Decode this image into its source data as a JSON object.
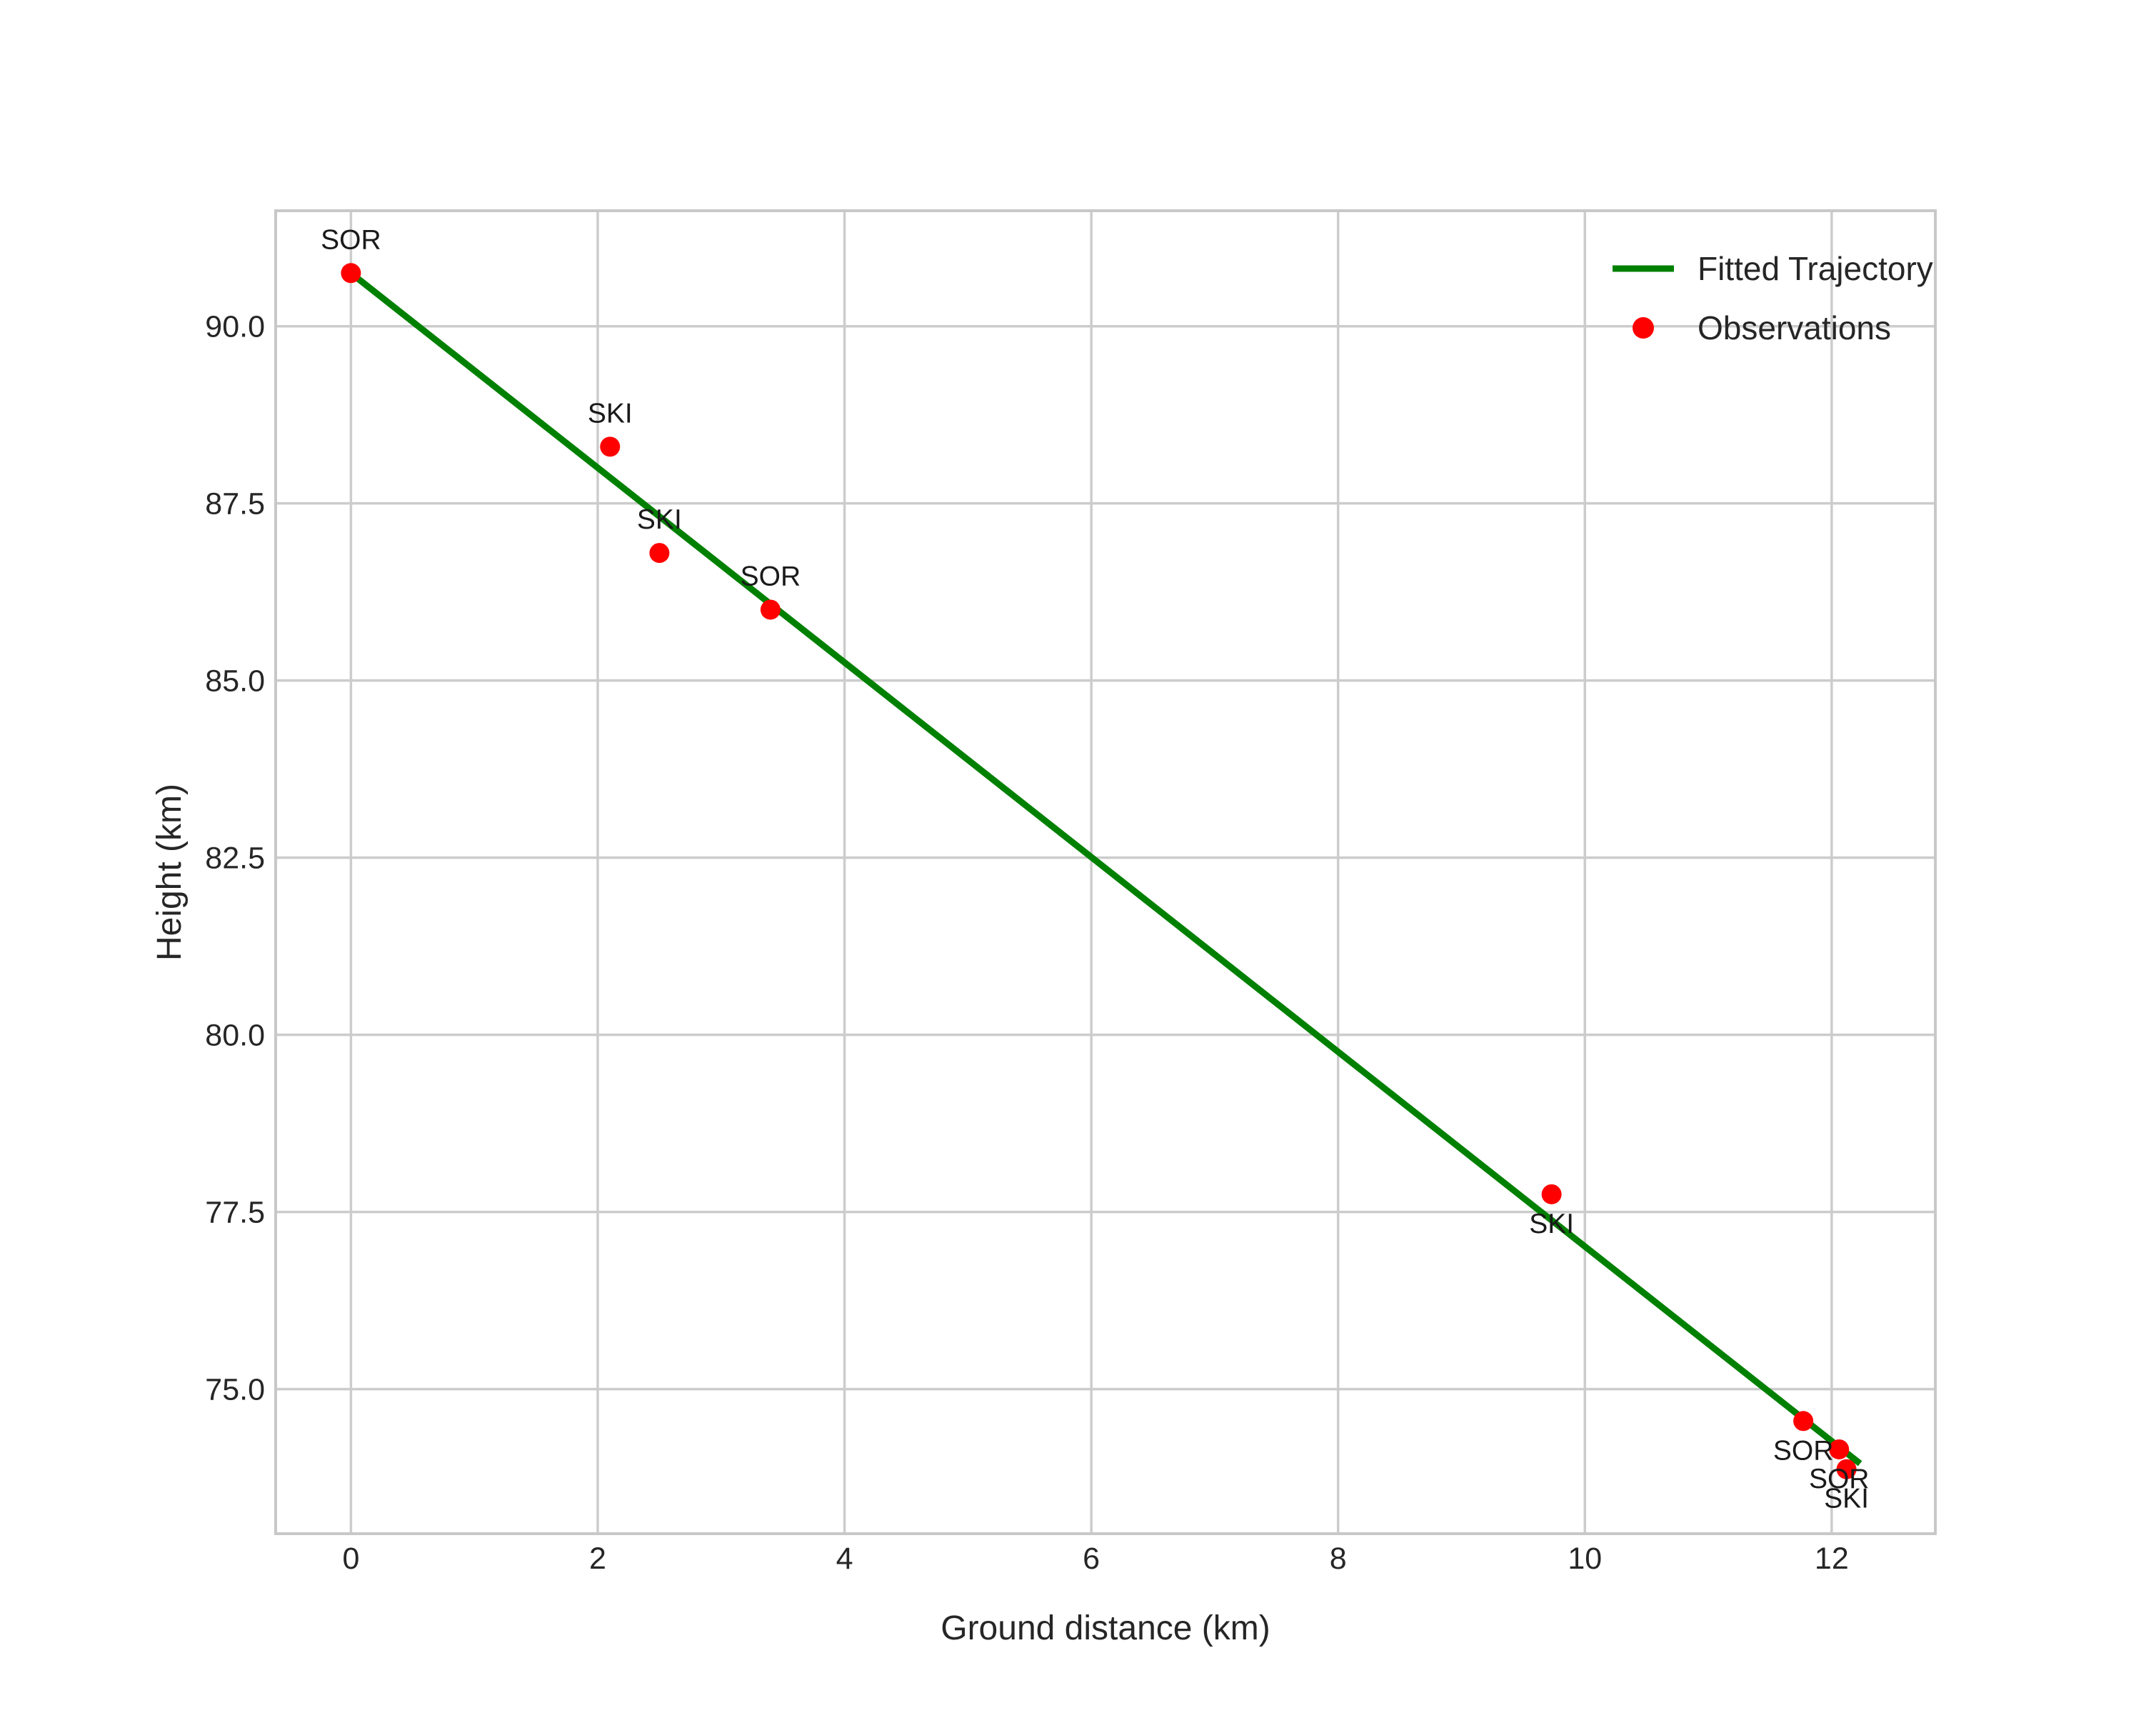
{
  "chart_data": {
    "type": "scatter",
    "title": "",
    "xlabel": "Ground distance (km)",
    "ylabel": "Height (km)",
    "xlim": [
      -0.61,
      12.84
    ],
    "ylim": [
      72.96,
      91.63
    ],
    "grid": true,
    "x_ticks": [
      0,
      2,
      4,
      6,
      8,
      10,
      12
    ],
    "x_tick_labels": [
      "0",
      "2",
      "4",
      "6",
      "8",
      "10",
      "12"
    ],
    "y_ticks": [
      75.0,
      77.5,
      80.0,
      82.5,
      85.0,
      87.5,
      90.0
    ],
    "y_tick_labels": [
      "75.0",
      "77.5",
      "80.0",
      "82.5",
      "85.0",
      "87.5",
      "90.0"
    ],
    "legend": {
      "position": "upper right",
      "entries": [
        {
          "label": "Fitted Trajectory",
          "marker": "line",
          "color": "#008000"
        },
        {
          "label": "Observations",
          "marker": "point",
          "color": "#ff0000"
        }
      ]
    },
    "series": [
      {
        "name": "Observations",
        "type": "scatter",
        "color": "#ff0000",
        "points": [
          {
            "station": "SOR",
            "x": 0.0,
            "y": 90.75,
            "label_side": "above"
          },
          {
            "station": "SKI",
            "x": 2.1,
            "y": 88.3,
            "label_side": "above"
          },
          {
            "station": "SKI",
            "x": 2.5,
            "y": 86.8,
            "label_side": "above"
          },
          {
            "station": "SOR",
            "x": 3.4,
            "y": 86.0,
            "label_side": "above"
          },
          {
            "station": "SKI",
            "x": 9.73,
            "y": 77.75,
            "label_side": "below"
          },
          {
            "station": "SOR",
            "x": 11.77,
            "y": 74.55,
            "label_side": "below"
          },
          {
            "station": "SOR",
            "x": 12.06,
            "y": 74.15,
            "label_side": "below"
          },
          {
            "station": "SKI",
            "x": 12.12,
            "y": 73.87,
            "label_side": "below"
          }
        ]
      },
      {
        "name": "Fitted Trajectory",
        "type": "line",
        "color": "#008000",
        "x": [
          0.0,
          12.23
        ],
        "y": [
          90.75,
          73.95
        ]
      }
    ],
    "colors": {
      "line": "#008000",
      "points": "#ff0000",
      "grid": "#cccccc",
      "spine": "#c8c8c8",
      "text": "#262626"
    }
  }
}
